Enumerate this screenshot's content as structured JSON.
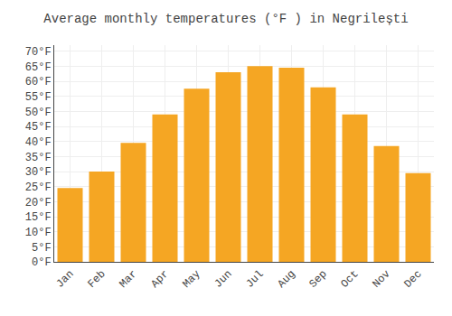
{
  "chart_data": {
    "type": "bar",
    "title": "Average monthly temperatures (°F ) in Negrilești",
    "categories": [
      "Jan",
      "Feb",
      "Mar",
      "Apr",
      "May",
      "Jun",
      "Jul",
      "Aug",
      "Sep",
      "Oct",
      "Nov",
      "Dec"
    ],
    "values": [
      24.5,
      30.0,
      39.5,
      49.0,
      57.5,
      63.0,
      65.0,
      64.5,
      58.0,
      49.0,
      38.5,
      29.5
    ],
    "color": "#F5A623",
    "ylim": [
      0,
      72
    ],
    "yticks": [
      {
        "value": 0,
        "label": "0°F"
      },
      {
        "value": 5,
        "label": "5°F"
      },
      {
        "value": 10,
        "label": "10°F"
      },
      {
        "value": 15,
        "label": "15°F"
      },
      {
        "value": 20,
        "label": "20°F"
      },
      {
        "value": 25,
        "label": "25°F"
      },
      {
        "value": 30,
        "label": "30°F"
      },
      {
        "value": 35,
        "label": "35°F"
      },
      {
        "value": 40,
        "label": "40°F"
      },
      {
        "value": 45,
        "label": "45°F"
      },
      {
        "value": 50,
        "label": "50°F"
      },
      {
        "value": 55,
        "label": "55°F"
      },
      {
        "value": 60,
        "label": "60°F"
      },
      {
        "value": 65,
        "label": "65°F"
      },
      {
        "value": 70,
        "label": "70°F"
      }
    ],
    "grid": true
  }
}
